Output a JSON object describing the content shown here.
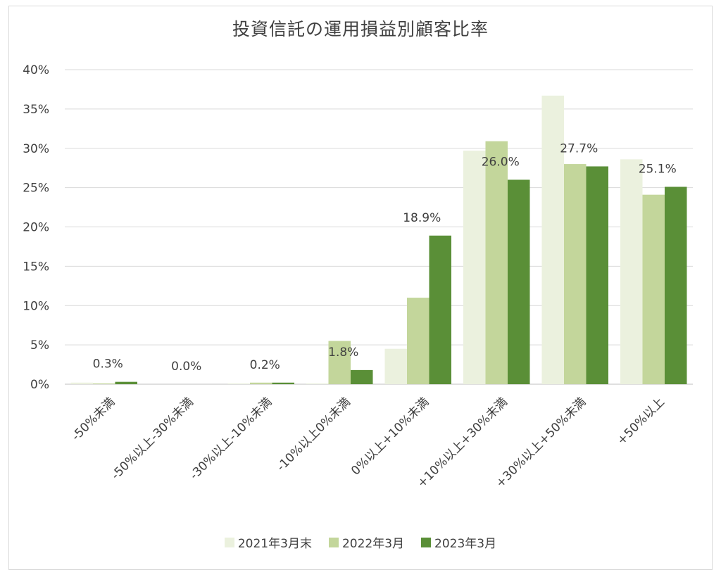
{
  "chart_data": {
    "type": "bar",
    "title": "投資信託の運用損益別顧客比率",
    "xlabel": "",
    "ylabel": "",
    "ylim": [
      0,
      40
    ],
    "yticks": [
      "0%",
      "5%",
      "10%",
      "15%",
      "20%",
      "25%",
      "30%",
      "35%",
      "40%"
    ],
    "grid": true,
    "legend_position": "bottom",
    "categories": [
      "-50%未満",
      "-50%以上-30%未満",
      "-30%以上-10%未満",
      "-10%以上0%未満",
      "0%以上+10%未満",
      "+10%以上+30%未満",
      "+30%以上+50%未満",
      "+50%以上"
    ],
    "series": [
      {
        "name": "2021年3月末",
        "color": "#ebf1de",
        "values": [
          0.2,
          0.0,
          0.1,
          0.1,
          4.5,
          29.7,
          36.7,
          28.6
        ]
      },
      {
        "name": "2022年3月",
        "color": "#c3d69b",
        "values": [
          0.1,
          0.0,
          0.2,
          5.5,
          11.0,
          30.9,
          28.0,
          24.1
        ]
      },
      {
        "name": "2023年3月",
        "color": "#5a8f37",
        "values": [
          0.3,
          0.0,
          0.2,
          1.8,
          18.9,
          26.0,
          27.7,
          25.1
        ]
      }
    ],
    "data_labels": {
      "series_index": 2,
      "labels": [
        "0.3%",
        "0.0%",
        "0.2%",
        "1.8%",
        "18.9%",
        "26.0%",
        "27.7%",
        "25.1%"
      ]
    }
  }
}
